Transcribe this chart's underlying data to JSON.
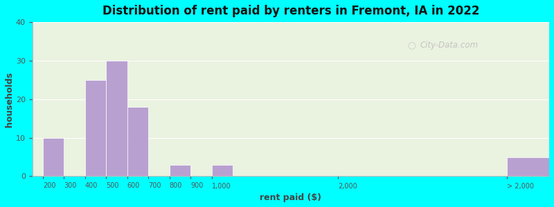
{
  "title": "Distribution of rent paid by renters in Fremont, IA in 2022",
  "xlabel": "rent paid ($)",
  "ylabel": "households",
  "background_color": "#00FFFF",
  "bar_color": "#b8a0d0",
  "bar_edge_color": "#ffffff",
  "ylim": [
    0,
    40
  ],
  "yticks": [
    0,
    10,
    20,
    30,
    40
  ],
  "x_positions": [
    0,
    1,
    2,
    3,
    4,
    5,
    6,
    7,
    8,
    14,
    22
  ],
  "values": [
    10,
    0,
    25,
    30,
    18,
    0,
    3,
    0,
    3,
    0,
    5
  ],
  "tick_labels": [
    "200",
    "300",
    "400",
    "500",
    "600",
    "700",
    "800",
    "900",
    "1,000",
    "2,000",
    "> 2,000"
  ],
  "xlim": [
    -0.5,
    24
  ],
  "watermark": "City-Data.com",
  "plot_bg": "#eaf2e0"
}
